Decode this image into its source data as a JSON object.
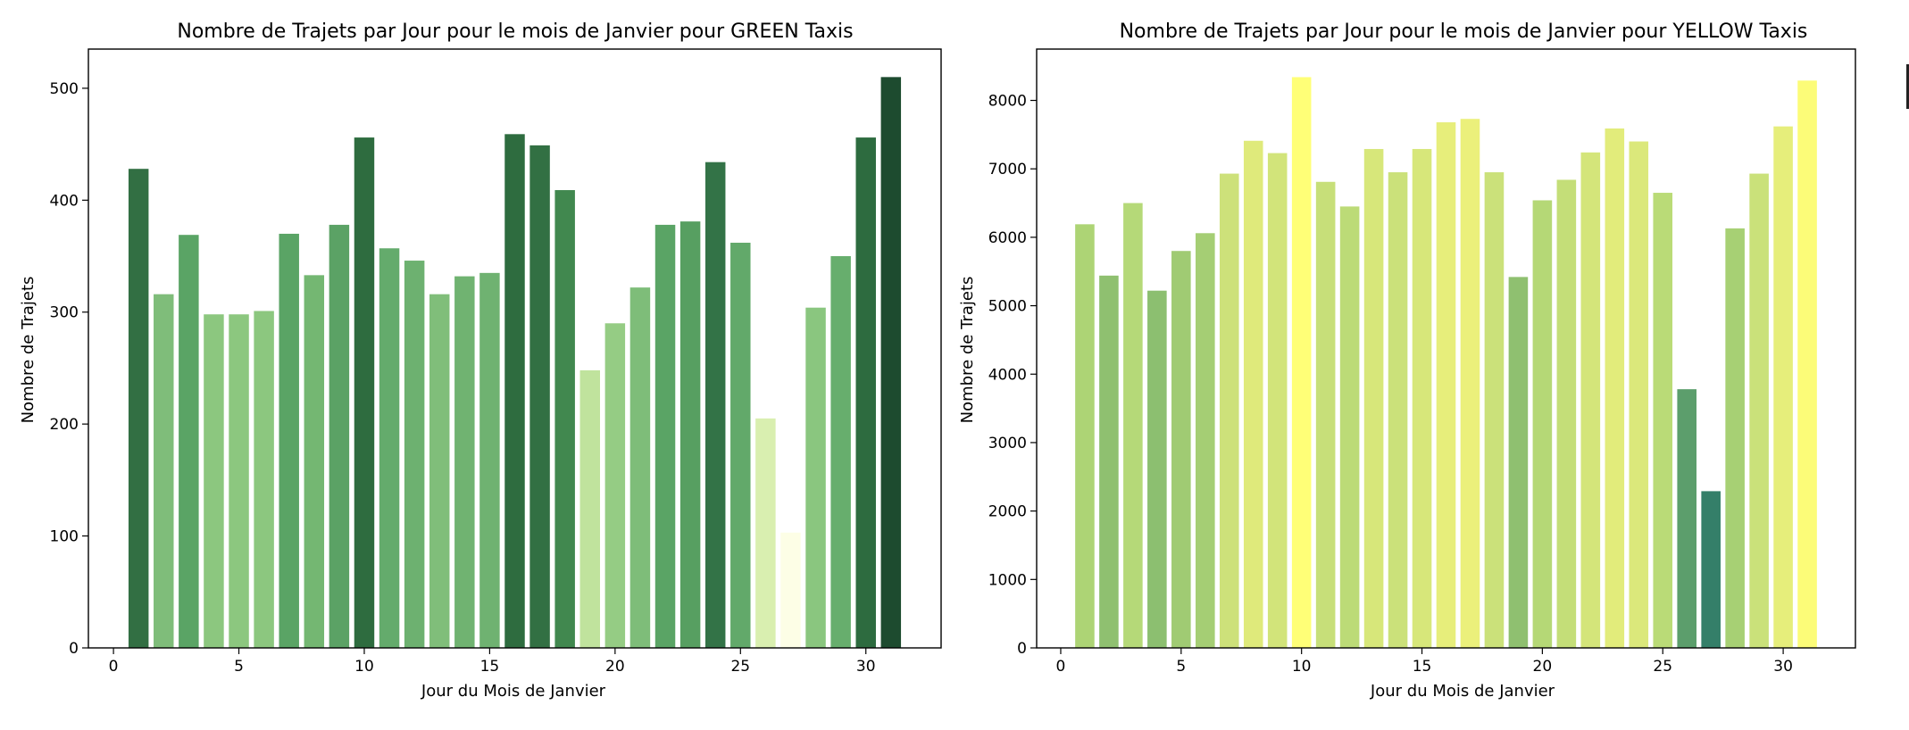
{
  "chart_data": [
    {
      "type": "bar",
      "title": "Nombre de Trajets par Jour pour le mois de Janvier pour GREEN Taxis",
      "xlabel": "Jour du Mois de Janvier",
      "ylabel": "Nombre de Trajets",
      "xlim": [
        -1,
        33
      ],
      "ylim": [
        0,
        535
      ],
      "xticks": [
        0,
        5,
        10,
        15,
        20,
        25,
        30
      ],
      "yticks": [
        0,
        100,
        200,
        300,
        400,
        500
      ],
      "grid": false,
      "x": [
        1,
        2,
        3,
        4,
        5,
        6,
        7,
        8,
        9,
        10,
        11,
        12,
        13,
        14,
        15,
        16,
        17,
        18,
        19,
        20,
        21,
        22,
        23,
        24,
        25,
        26,
        27,
        28,
        29,
        30,
        31
      ],
      "values": [
        428,
        316,
        369,
        298,
        298,
        301,
        370,
        333,
        378,
        456,
        357,
        346,
        316,
        332,
        335,
        459,
        449,
        409,
        248,
        290,
        322,
        378,
        381,
        434,
        362,
        205,
        103,
        304,
        350,
        456,
        510
      ],
      "colors": [
        "#326f43",
        "#7fbd7a",
        "#5aa465",
        "#8cc77f",
        "#8cc77f",
        "#8cc77f",
        "#5aa465",
        "#74b772",
        "#5ba265",
        "#2e6c3f",
        "#64ab6c",
        "#6db170",
        "#80be7a",
        "#70b371",
        "#6fb271",
        "#2e6c3f",
        "#327043",
        "#41884f",
        "#c0e39d",
        "#95cc84",
        "#7ebd79",
        "#5aa465",
        "#579f61",
        "#337347",
        "#62a96a",
        "#d9efb0",
        "#fdfee6",
        "#8ac67f",
        "#67ae6d",
        "#2d6b3f",
        "#1d4b2f"
      ]
    },
    {
      "type": "bar",
      "title": "Nombre de Trajets par Jour pour le mois de Janvier pour YELLOW Taxis",
      "xlabel": "Jour du Mois de Janvier",
      "ylabel": "Nombre de Trajets",
      "xlim": [
        -1,
        33
      ],
      "ylim": [
        0,
        8750
      ],
      "xticks": [
        0,
        5,
        10,
        15,
        20,
        25,
        30
      ],
      "yticks": [
        0,
        1000,
        2000,
        3000,
        4000,
        5000,
        6000,
        7000,
        8000
      ],
      "grid": false,
      "x": [
        1,
        2,
        3,
        4,
        5,
        6,
        7,
        8,
        9,
        10,
        11,
        12,
        13,
        14,
        15,
        16,
        17,
        18,
        19,
        20,
        21,
        22,
        23,
        24,
        25,
        26,
        27,
        28,
        29,
        30,
        31
      ],
      "values": [
        6190,
        5440,
        6500,
        5220,
        5800,
        6060,
        6930,
        7410,
        7230,
        8340,
        6810,
        6450,
        7290,
        6950,
        7290,
        7680,
        7730,
        6950,
        5420,
        6540,
        6840,
        7240,
        7590,
        7400,
        6650,
        3780,
        2290,
        6130,
        6930,
        7620,
        8290
      ],
      "colors": [
        "#add475",
        "#8fc070",
        "#b5d978",
        "#8cbf70",
        "#a0cb73",
        "#a5ce74",
        "#cde17a",
        "#dfea7b",
        "#d2e47a",
        "#ffff77",
        "#c7df79",
        "#bcdb77",
        "#d7e77a",
        "#cbe17a",
        "#d7e77a",
        "#e7ee7b",
        "#ebf07b",
        "#cbe17a",
        "#8fc070",
        "#b5d876",
        "#c4de78",
        "#d4e57a",
        "#e2ec7b",
        "#dbe87b",
        "#badb77",
        "#5c9e6c",
        "#347f69",
        "#a7d074",
        "#cae17a",
        "#e6ee7b",
        "#fcfc78"
      ]
    }
  ]
}
